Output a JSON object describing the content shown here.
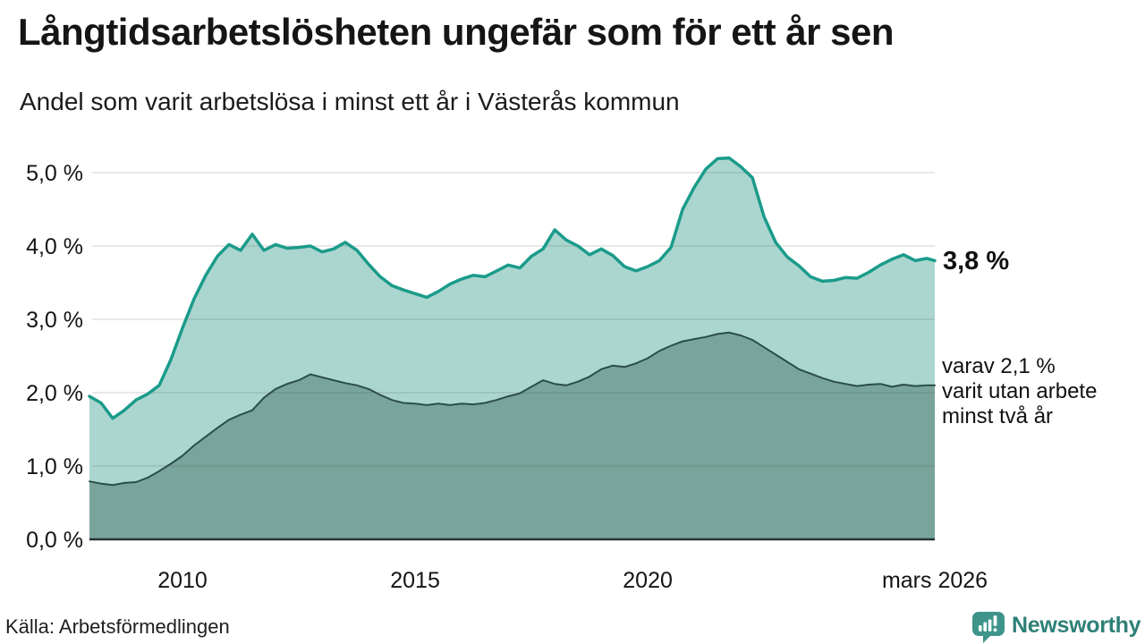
{
  "header": {
    "title": "Långtidsarbetslösheten ungefär som för ett år sen",
    "subtitle": "Andel som varit arbetslösa i minst ett år i Västerås kommun"
  },
  "chart_data": {
    "type": "area",
    "title": "Långtidsarbetslösheten ungefär som för ett år sen",
    "subtitle": "Andel som varit arbetslösa i minst ett år i Västerås kommun",
    "grid": true,
    "xlim": [
      2008,
      2026.17
    ],
    "ylim": [
      0,
      5.4
    ],
    "x": [
      2008,
      2008.25,
      2008.5,
      2008.75,
      2009,
      2009.25,
      2009.5,
      2009.75,
      2010,
      2010.25,
      2010.5,
      2010.75,
      2011,
      2011.25,
      2011.5,
      2011.75,
      2012,
      2012.25,
      2012.5,
      2012.75,
      2013,
      2013.25,
      2013.5,
      2013.75,
      2014,
      2014.25,
      2014.5,
      2014.75,
      2015,
      2015.25,
      2015.5,
      2015.75,
      2016,
      2016.25,
      2016.5,
      2016.75,
      2017,
      2017.25,
      2017.5,
      2017.75,
      2018,
      2018.25,
      2018.5,
      2018.75,
      2019,
      2019.25,
      2019.5,
      2019.75,
      2020,
      2020.25,
      2020.5,
      2020.75,
      2021,
      2021.25,
      2021.5,
      2021.75,
      2022,
      2022.25,
      2022.5,
      2022.75,
      2023,
      2023.25,
      2023.5,
      2023.75,
      2024,
      2024.25,
      2024.5,
      2024.75,
      2025,
      2025.25,
      2025.5,
      2025.75,
      2026,
      2026.17
    ],
    "series": [
      {
        "name": "Andel arbetslösa minst ett år",
        "line_color": "#1a9b8a",
        "fill_color": "#abd6cf",
        "line_width": 3.5,
        "values": [
          1.95,
          1.86,
          1.65,
          1.76,
          1.9,
          1.98,
          2.1,
          2.45,
          2.88,
          3.28,
          3.6,
          3.86,
          4.02,
          3.94,
          4.16,
          3.94,
          4.02,
          3.97,
          3.98,
          4.0,
          3.92,
          3.96,
          4.05,
          3.94,
          3.75,
          3.58,
          3.46,
          3.4,
          3.35,
          3.3,
          3.38,
          3.48,
          3.55,
          3.6,
          3.58,
          3.66,
          3.74,
          3.7,
          3.86,
          3.96,
          4.22,
          4.08,
          4.0,
          3.88,
          3.96,
          3.87,
          3.72,
          3.66,
          3.72,
          3.8,
          3.98,
          4.5,
          4.8,
          5.05,
          5.19,
          5.2,
          5.08,
          4.93,
          4.4,
          4.05,
          3.85,
          3.73,
          3.58,
          3.52,
          3.53,
          3.57,
          3.56,
          3.64,
          3.74,
          3.82,
          3.88,
          3.8,
          3.83,
          3.8
        ]
      },
      {
        "name": "varav arbetslösa minst två år",
        "line_color": "#2b4d48",
        "fill_color": "#79a49c",
        "line_width": 2,
        "values": [
          0.79,
          0.76,
          0.74,
          0.77,
          0.78,
          0.84,
          0.93,
          1.03,
          1.14,
          1.28,
          1.4,
          1.52,
          1.63,
          1.7,
          1.76,
          1.93,
          2.05,
          2.12,
          2.17,
          2.25,
          2.21,
          2.17,
          2.13,
          2.1,
          2.05,
          1.97,
          1.9,
          1.86,
          1.85,
          1.83,
          1.85,
          1.83,
          1.85,
          1.84,
          1.86,
          1.9,
          1.95,
          1.99,
          2.08,
          2.17,
          2.12,
          2.1,
          2.15,
          2.22,
          2.32,
          2.37,
          2.35,
          2.4,
          2.47,
          2.57,
          2.64,
          2.7,
          2.73,
          2.76,
          2.8,
          2.82,
          2.78,
          2.72,
          2.62,
          2.52,
          2.42,
          2.32,
          2.26,
          2.2,
          2.15,
          2.12,
          2.09,
          2.11,
          2.12,
          2.08,
          2.11,
          2.09,
          2.1,
          2.1
        ]
      }
    ],
    "y_ticks": [
      {
        "value": 0.0,
        "label": "0,0 %"
      },
      {
        "value": 1.0,
        "label": "1,0 %"
      },
      {
        "value": 2.0,
        "label": "2,0 %"
      },
      {
        "value": 3.0,
        "label": "3,0 %"
      },
      {
        "value": 4.0,
        "label": "4,0 %"
      },
      {
        "value": 5.0,
        "label": "5,0 %"
      }
    ],
    "x_ticks": [
      {
        "value": 2010,
        "label": "2010"
      },
      {
        "value": 2015,
        "label": "2015"
      },
      {
        "value": 2020,
        "label": "2020"
      },
      {
        "value": 2026.17,
        "label": "mars 2026"
      }
    ],
    "annotations": {
      "latest_value": "3,8 %",
      "secondary_note": "varav 2,1 %\nvarit utan arbete\nminst två år"
    }
  },
  "footer": {
    "source": "Källa: Arbetsförmedlingen",
    "brand": "Newsworthy"
  },
  "colors": {
    "accent_teal": "#1a9b8a",
    "light_fill": "#abd6cf",
    "dark_fill": "#79a49c",
    "dark_line": "#2b4d48",
    "grid": "#dddddd",
    "axis": "#253431",
    "brand_teal": "#2e8077",
    "logo_bubble": "#3e948b"
  }
}
